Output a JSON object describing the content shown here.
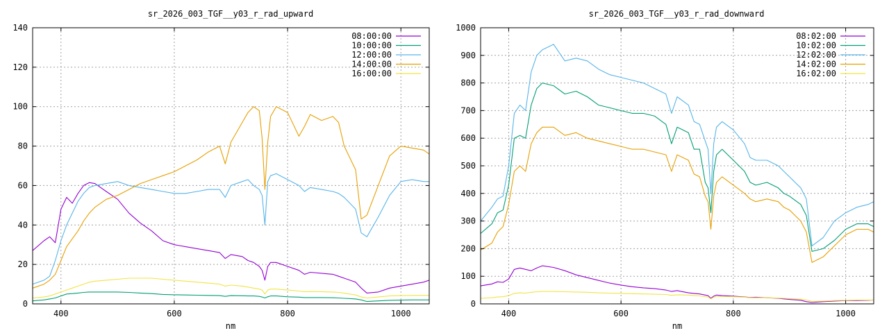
{
  "chart_data": [
    {
      "type": "line",
      "title": "sr_2026_003_TGF__y03_r_rad_upward",
      "xlabel": "nm",
      "ylabel": "",
      "xlim": [
        350,
        1050
      ],
      "ylim": [
        0,
        140
      ],
      "xticks": [
        400,
        600,
        800,
        1000
      ],
      "yticks": [
        0,
        20,
        40,
        60,
        80,
        100,
        120,
        140
      ],
      "grid": true,
      "legend": "top-right",
      "x": [
        350,
        370,
        380,
        390,
        400,
        410,
        420,
        430,
        440,
        450,
        460,
        480,
        500,
        520,
        540,
        560,
        580,
        600,
        620,
        640,
        660,
        680,
        690,
        700,
        720,
        730,
        740,
        750,
        755,
        760,
        765,
        770,
        780,
        800,
        820,
        830,
        840,
        860,
        880,
        890,
        900,
        920,
        930,
        940,
        960,
        980,
        1000,
        1020,
        1040,
        1050
      ],
      "series": [
        {
          "name": "08:00:00",
          "color": "#9400d3",
          "values": [
            27,
            32,
            34,
            31,
            48,
            54,
            51,
            56,
            60,
            61.5,
            61,
            57,
            53,
            46,
            41,
            37,
            32,
            30,
            29,
            28,
            27,
            26,
            23,
            25,
            24,
            22,
            21,
            19,
            17,
            12,
            19,
            21,
            21,
            19,
            17,
            15,
            16,
            15.5,
            15,
            14,
            13,
            11,
            8,
            5.5,
            6,
            8,
            9,
            10,
            11,
            12
          ]
        },
        {
          "name": "10:00:00",
          "color": "#009e73",
          "values": [
            1.5,
            2,
            2.5,
            3,
            4,
            5,
            5.2,
            5.5,
            5.8,
            6,
            6,
            6,
            6,
            5.8,
            5.5,
            5.2,
            4.8,
            4.6,
            4.5,
            4.4,
            4.3,
            4.2,
            3.8,
            4.2,
            4.1,
            4,
            4,
            3.8,
            3.5,
            3,
            3.6,
            4,
            4,
            3.6,
            3.4,
            3.2,
            3.2,
            3.2,
            3.1,
            3,
            2.8,
            2.5,
            2,
            1.2,
            1.5,
            1.8,
            1.9,
            2,
            2,
            2
          ]
        },
        {
          "name": "12:00:00",
          "color": "#56b4e9",
          "values": [
            10,
            12,
            14,
            22,
            32,
            40,
            46,
            52,
            56,
            59,
            60,
            61,
            62,
            60,
            59,
            58,
            57,
            56,
            56,
            57,
            58,
            58,
            54,
            60,
            62,
            63,
            60,
            58,
            55,
            40,
            62,
            65,
            66,
            63,
            60,
            57,
            59,
            58,
            57,
            56,
            54,
            48,
            36,
            34,
            44,
            55,
            62,
            63,
            62,
            62
          ]
        },
        {
          "name": "14:00:00",
          "color": "#e69f00",
          "values": [
            8,
            10,
            12,
            15,
            22,
            29,
            33,
            37,
            42,
            46,
            49,
            53,
            55,
            58,
            61,
            63,
            65,
            67,
            70,
            73,
            77,
            80,
            71,
            82,
            92,
            97,
            100,
            98,
            84,
            58,
            82,
            95,
            100,
            97,
            85,
            90,
            96,
            93,
            95,
            92,
            80,
            68,
            43,
            45,
            60,
            75,
            80,
            79,
            78,
            76
          ]
        },
        {
          "name": "16:00:00",
          "color": "#f0e442",
          "values": [
            3,
            3.5,
            4,
            5,
            6,
            7,
            8,
            9,
            10,
            11,
            11.5,
            12,
            12.5,
            13,
            13,
            13,
            12.5,
            12,
            11.5,
            11,
            10.5,
            10,
            9,
            9.5,
            9,
            8.5,
            8,
            7.5,
            7,
            5,
            7,
            7.5,
            7.5,
            7,
            6.5,
            6.2,
            6.3,
            6.2,
            6,
            5.8,
            5.4,
            4.5,
            3.5,
            3,
            3.5,
            4,
            4.2,
            4.3,
            4.3,
            4.3
          ]
        }
      ]
    },
    {
      "type": "line",
      "title": "sr_2026_003_TGF__y03_r_rad_downward",
      "xlabel": "nm",
      "ylabel": "",
      "xlim": [
        350,
        1050
      ],
      "ylim": [
        0,
        1000
      ],
      "xticks": [
        400,
        600,
        800,
        1000
      ],
      "yticks": [
        0,
        100,
        200,
        300,
        400,
        500,
        600,
        700,
        800,
        900,
        1000
      ],
      "grid": true,
      "legend": "top-right",
      "x": [
        350,
        370,
        380,
        390,
        400,
        410,
        420,
        430,
        440,
        450,
        460,
        480,
        500,
        520,
        540,
        560,
        580,
        600,
        620,
        640,
        660,
        680,
        690,
        700,
        720,
        730,
        740,
        750,
        755,
        760,
        765,
        770,
        780,
        800,
        820,
        830,
        840,
        860,
        880,
        890,
        900,
        920,
        930,
        940,
        960,
        980,
        1000,
        1020,
        1040,
        1050
      ],
      "series": [
        {
          "name": "08:02:00",
          "color": "#9400d3",
          "values": [
            65,
            72,
            80,
            78,
            90,
            125,
            130,
            125,
            120,
            130,
            138,
            132,
            120,
            105,
            95,
            85,
            75,
            68,
            62,
            58,
            55,
            50,
            45,
            48,
            40,
            38,
            36,
            32,
            30,
            20,
            28,
            32,
            30,
            28,
            25,
            23,
            24,
            22,
            20,
            18,
            16,
            13,
            8,
            5,
            8,
            10,
            12,
            12,
            13,
            14
          ]
        },
        {
          "name": "10:02:00",
          "color": "#009e73",
          "values": [
            255,
            290,
            330,
            340,
            430,
            600,
            610,
            600,
            720,
            780,
            800,
            790,
            760,
            770,
            750,
            720,
            710,
            700,
            690,
            690,
            680,
            650,
            580,
            640,
            620,
            560,
            560,
            440,
            420,
            330,
            480,
            540,
            560,
            520,
            480,
            440,
            430,
            440,
            420,
            400,
            390,
            360,
            320,
            190,
            200,
            230,
            270,
            290,
            290,
            280
          ]
        },
        {
          "name": "12:02:00",
          "color": "#56b4e9",
          "values": [
            300,
            350,
            380,
            390,
            500,
            690,
            720,
            700,
            840,
            900,
            920,
            940,
            880,
            890,
            880,
            850,
            830,
            820,
            810,
            800,
            780,
            760,
            690,
            750,
            720,
            660,
            650,
            590,
            560,
            400,
            580,
            640,
            660,
            630,
            580,
            530,
            520,
            520,
            500,
            480,
            460,
            420,
            380,
            210,
            240,
            300,
            330,
            350,
            360,
            370
          ]
        },
        {
          "name": "14:02:00",
          "color": "#e69f00",
          "values": [
            195,
            220,
            260,
            280,
            360,
            480,
            500,
            480,
            580,
            620,
            640,
            640,
            610,
            620,
            600,
            590,
            580,
            570,
            560,
            560,
            550,
            540,
            480,
            540,
            520,
            470,
            460,
            390,
            370,
            270,
            390,
            440,
            460,
            430,
            400,
            380,
            370,
            380,
            370,
            350,
            340,
            300,
            260,
            150,
            170,
            210,
            250,
            270,
            270,
            260
          ]
        },
        {
          "name": "16:02:00",
          "color": "#f0e442",
          "values": [
            20,
            22,
            25,
            26,
            30,
            38,
            40,
            39,
            42,
            44,
            45,
            45,
            44,
            43,
            42,
            40,
            39,
            38,
            37,
            36,
            35,
            34,
            31,
            33,
            32,
            30,
            29,
            26,
            25,
            18,
            24,
            27,
            27,
            26,
            24,
            22,
            22,
            22,
            21,
            20,
            19,
            17,
            14,
            9,
            10,
            12,
            13,
            14,
            14,
            14
          ]
        }
      ]
    }
  ]
}
